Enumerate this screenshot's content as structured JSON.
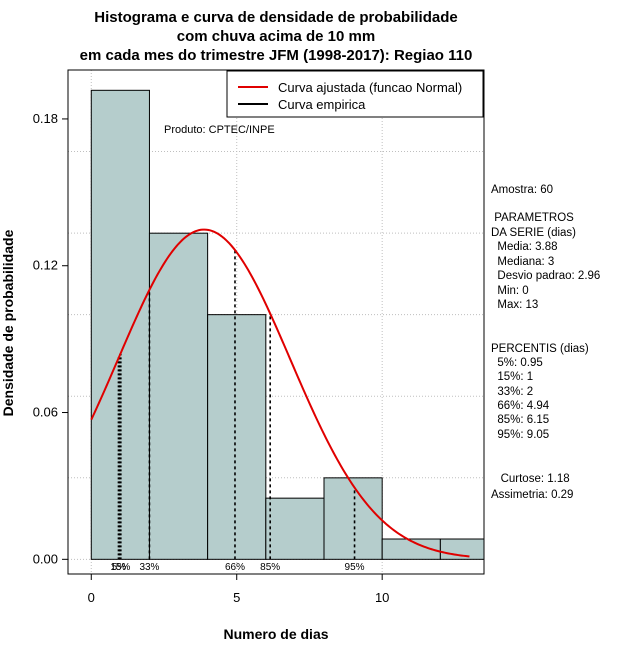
{
  "chart_data": {
    "type": "bar",
    "title_lines": [
      "Histograma e curva de densidade de probabilidade",
      "com chuva acima de 10 mm",
      "em cada mes do trimestre JFM (1998-2017): Regiao 110"
    ],
    "xlabel": "Numero de dias",
    "ylabel": "Densidade de probabilidade",
    "xlim": [
      -0.8,
      13.5
    ],
    "ylim": [
      -0.006,
      0.2
    ],
    "x_ticks": [
      0,
      5,
      10
    ],
    "y_ticks": [
      0.0,
      0.06,
      0.12,
      0.18
    ],
    "y_tick_labels": [
      "0.00",
      "0.06",
      "0.12",
      "0.18"
    ],
    "grid": true,
    "bins": [
      {
        "x0": 0,
        "x1": 2,
        "density": 0.1917
      },
      {
        "x0": 2,
        "x1": 4,
        "density": 0.1333
      },
      {
        "x0": 4,
        "x1": 6,
        "density": 0.1
      },
      {
        "x0": 6,
        "x1": 8,
        "density": 0.025
      },
      {
        "x0": 8,
        "x1": 10,
        "density": 0.0333
      },
      {
        "x0": 10,
        "x1": 12,
        "density": 0.0083
      },
      {
        "x0": 12,
        "x1": 14,
        "density": 0.0083
      }
    ],
    "normal_curve": {
      "mean": 3.88,
      "sd": 2.96,
      "x_from": 0,
      "x_to": 13
    },
    "percentile_lines": [
      {
        "label": "5%",
        "x": 0.95,
        "style": "dotted"
      },
      {
        "label": "15%",
        "x": 1,
        "style": "dotted"
      },
      {
        "label": "33%",
        "x": 2,
        "style": "dashed"
      },
      {
        "label": "66%",
        "x": 4.94,
        "style": "dashed"
      },
      {
        "label": "85%",
        "x": 6.15,
        "style": "dashed"
      },
      {
        "label": "95%",
        "x": 9.05,
        "style": "dashed"
      }
    ],
    "legend": {
      "position": "top-right",
      "entries": [
        {
          "label": "Curva ajustada (funcao Normal)",
          "color": "#e00000"
        },
        {
          "label": "Curva empirica",
          "color": "#000000"
        }
      ]
    },
    "credit": "Produto: CPTEC/INPE",
    "stats_lines": [
      "Amostra: 60",
      " PARAMETROS",
      "DA SERIE (dias)",
      "  Media: 3.88",
      "  Mediana: 3",
      "  Desvio padrao: 2.96",
      "  Min: 0",
      "  Max: 13",
      "PERCENTIS (dias)",
      "  5%: 0.95",
      "  15%: 1",
      "  33%: 2",
      "  66%: 4.94",
      "  85%: 6.15",
      "  95%: 9.05",
      "   Curtose: 1.18",
      "Assimetria: 0.29"
    ],
    "colors": {
      "bar_fill": "#b5cdcc",
      "bar_stroke": "#000000",
      "curve": "#e00000",
      "grid": "#bfbfbf"
    }
  }
}
